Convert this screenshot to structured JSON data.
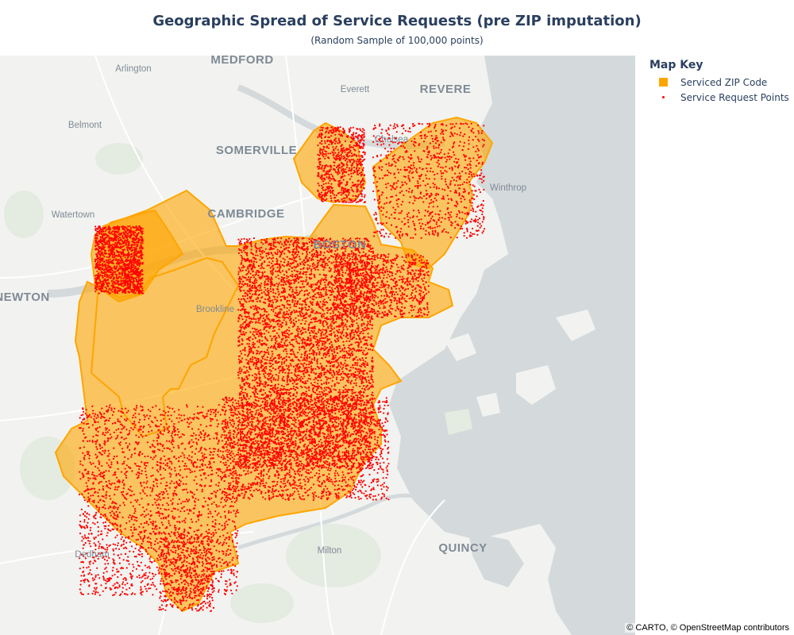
{
  "title": "Geographic Spread of Service Requests (pre ZIP imputation)",
  "subtitle": "(Random Sample of 100,000 points)",
  "legend": {
    "title": "Map Key",
    "items": [
      {
        "label": "Serviced ZIP Code",
        "color": "#FFA500",
        "icon": "orange-square-icon"
      },
      {
        "label": "Service Request Points",
        "color": "#FF0000",
        "icon": "red-dot-icon"
      }
    ]
  },
  "map": {
    "basemap": "CARTO light",
    "colors": {
      "water": "#d4dadc",
      "land": "#f2f3f0",
      "park": "#e4ebe1",
      "zip_fill": "#FFA500",
      "points": "#FF0000"
    },
    "labels": {
      "medford": "MEDFORD",
      "arlington": "Arlington",
      "everett": "Everett",
      "revere": "REVERE",
      "belmont": "Belmont",
      "somerville": "SOMERVILLE",
      "chelsea": "Chelsea",
      "winthrop": "Winthrop",
      "watertown": "Watertown",
      "cambridge": "CAMBRIDGE",
      "boston": "BOSTON",
      "newton": "NEWTON",
      "brookline": "Brookline",
      "dedham": "Dedham",
      "milton": "Milton",
      "quincy": "QUINCY"
    }
  },
  "attribution": "© CARTO, © OpenStreetMap contributors"
}
